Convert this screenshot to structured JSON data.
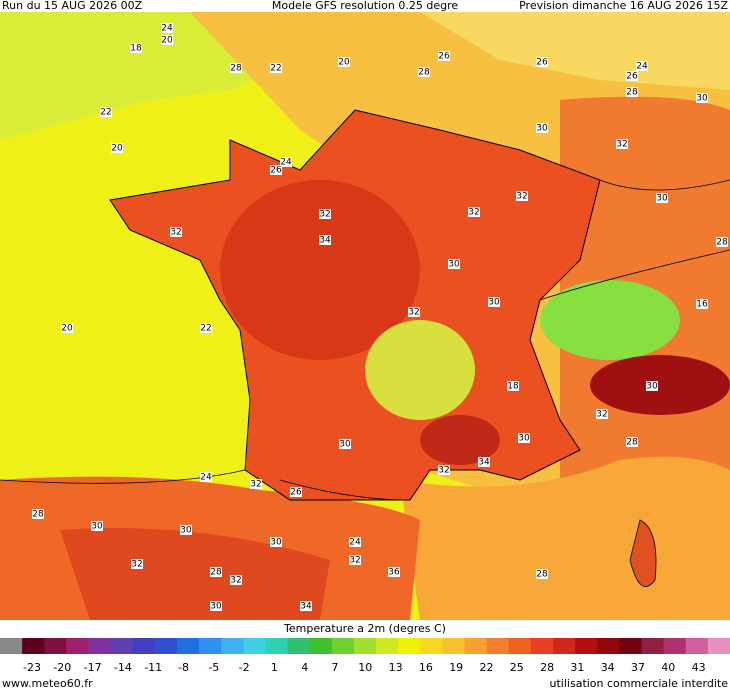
{
  "header": {
    "left": "Run du 15 AUG 2026 00Z",
    "center": "Modele GFS resolution 0.25 degre",
    "right": "Prevision dimanche 16 AUG 2026 15Z"
  },
  "map": {
    "contour_labels": [
      24,
      20,
      18,
      28,
      22,
      20,
      26,
      28,
      26,
      24,
      26,
      28,
      30,
      22,
      20,
      30,
      32,
      24,
      26,
      32,
      32,
      32,
      30,
      34,
      28,
      30,
      32,
      30,
      32,
      16,
      20,
      22,
      18,
      30,
      32,
      28,
      30,
      30,
      32,
      34,
      24,
      32,
      26,
      28,
      30,
      30,
      30,
      24,
      32,
      32,
      28,
      32,
      36,
      28,
      30,
      34
    ]
  },
  "colorbar": {
    "title": "Temperature a 2m (degres C)",
    "ticks": [
      -23,
      -20,
      -17,
      -14,
      -11,
      -8,
      -5,
      -2,
      1,
      4,
      7,
      10,
      13,
      16,
      19,
      22,
      25,
      28,
      31,
      34,
      37,
      40,
      43
    ]
  },
  "footer": {
    "left": "www.meteo60.fr",
    "right": "utilisation commerciale interdite"
  }
}
